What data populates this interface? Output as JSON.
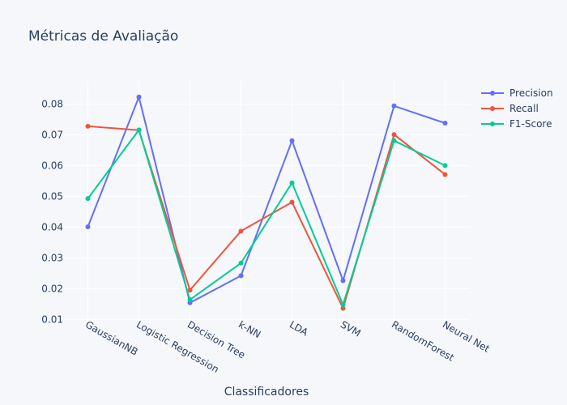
{
  "chart_data": {
    "type": "line",
    "title": "Métricas de Avaliação",
    "xlabel": "Classificadores",
    "ylabel": "",
    "categories": [
      "GaussianNB",
      "Logistic Regression",
      "Decision Tree",
      "k-NN",
      "LDA",
      "SVM",
      "RandomForest",
      "Neural Net"
    ],
    "yticks": [
      0.01,
      0.02,
      0.03,
      0.04,
      0.05,
      0.06,
      0.07,
      0.08
    ],
    "ylim": [
      0.0085,
      0.0875
    ],
    "grid": true,
    "legend_position": "top-right",
    "series": [
      {
        "name": "Precision",
        "color": "#636efa",
        "values": [
          0.0401,
          0.0823,
          0.0154,
          0.0242,
          0.0681,
          0.0226,
          0.0794,
          0.0738
        ]
      },
      {
        "name": "Recall",
        "color": "#ef553b",
        "values": [
          0.0728,
          0.0715,
          0.0195,
          0.0387,
          0.0481,
          0.0136,
          0.0701,
          0.0571
        ]
      },
      {
        "name": "F1-Score",
        "color": "#00cc96",
        "values": [
          0.0493,
          0.0716,
          0.0164,
          0.0283,
          0.0544,
          0.0148,
          0.0681,
          0.06
        ]
      }
    ]
  }
}
